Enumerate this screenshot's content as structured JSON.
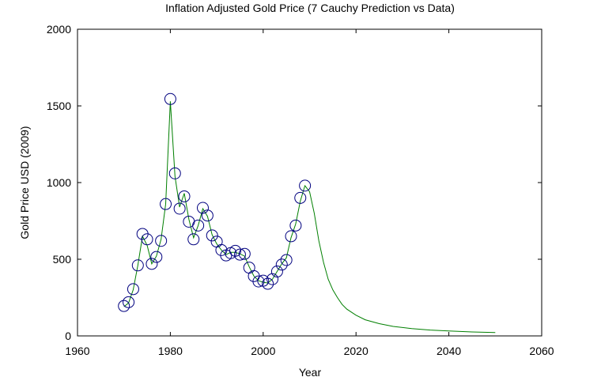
{
  "chart_data": {
    "type": "line",
    "title": "Inflation Adjusted Gold Price (7 Cauchy Prediction vs Data)",
    "xlabel": "Year",
    "ylabel": "Gold Price USD (2009)",
    "xlim": [
      1960,
      2060
    ],
    "ylim": [
      0,
      2000
    ],
    "xticks": [
      1960,
      1980,
      2000,
      2020,
      2040,
      2060
    ],
    "yticks": [
      0,
      500,
      1000,
      1500,
      2000
    ],
    "grid": false,
    "colors": {
      "prediction": "#007f00",
      "data": "#00007f"
    },
    "series": [
      {
        "kind": "line",
        "x": [
          1970,
          1971,
          1972,
          1973,
          1974,
          1975,
          1976,
          1977,
          1978,
          1979,
          1980,
          1981,
          1982,
          1983,
          1984,
          1985,
          1986,
          1987,
          1988,
          1989,
          1990,
          1991,
          1992,
          1993,
          1994,
          1995,
          1996,
          1997,
          1998,
          1999,
          2000,
          2001,
          2002,
          2003,
          2004,
          2005,
          2006,
          2007,
          2008,
          2009,
          2010,
          2011,
          2012,
          2013,
          2014,
          2015,
          2016,
          2017,
          2018,
          2020,
          2022,
          2025,
          2028,
          2032,
          2036,
          2040,
          2045,
          2050
        ],
        "y": [
          190,
          215,
          300,
          460,
          650,
          590,
          470,
          520,
          630,
          860,
          1530,
          1040,
          840,
          930,
          760,
          640,
          720,
          830,
          780,
          660,
          600,
          560,
          530,
          545,
          545,
          535,
          520,
          450,
          390,
          360,
          350,
          345,
          370,
          420,
          470,
          510,
          640,
          730,
          880,
          980,
          940,
          800,
          620,
          480,
          370,
          300,
          250,
          205,
          175,
          135,
          105,
          80,
          62,
          48,
          38,
          32,
          26,
          22
        ]
      },
      {
        "kind": "markers",
        "x": [
          1970,
          1971,
          1972,
          1973,
          1974,
          1975,
          1976,
          1977,
          1978,
          1979,
          1980,
          1981,
          1982,
          1983,
          1984,
          1985,
          1986,
          1987,
          1988,
          1989,
          1990,
          1991,
          1992,
          1993,
          1994,
          1995,
          1996,
          1997,
          1998,
          1999,
          2000,
          2001,
          2002,
          2003,
          2004,
          2005,
          2006,
          2007,
          2008,
          2009
        ],
        "y": [
          195,
          220,
          305,
          460,
          665,
          630,
          470,
          515,
          620,
          860,
          1545,
          1060,
          830,
          910,
          745,
          630,
          720,
          835,
          785,
          655,
          615,
          560,
          525,
          540,
          555,
          530,
          535,
          445,
          390,
          355,
          360,
          340,
          370,
          420,
          465,
          495,
          650,
          720,
          900,
          980
        ]
      }
    ]
  }
}
